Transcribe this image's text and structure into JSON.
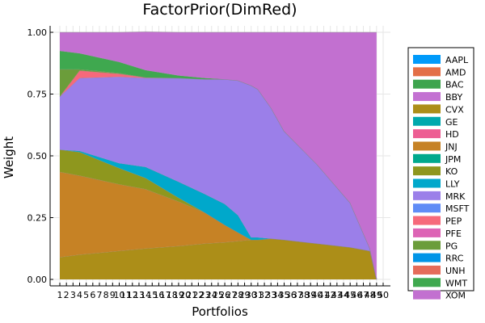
{
  "chart_data": {
    "type": "area",
    "stacked": true,
    "title": "FactorPrior(DimRed)",
    "xlabel": "Portfolios",
    "ylabel": "Weight",
    "xlim": [
      1,
      50
    ],
    "ylim": [
      0,
      1
    ],
    "yticks": [
      "0.00",
      "0.25",
      "0.50",
      "0.75",
      "1.00"
    ],
    "x": [
      1,
      4,
      10,
      14,
      19,
      23,
      26,
      28,
      30,
      31,
      33,
      35,
      40,
      45,
      48,
      49
    ],
    "grid": true,
    "legend_position": "right",
    "series": [
      {
        "name": "AAPL",
        "color": "#009AFA",
        "values": [
          0,
          0,
          0,
          0,
          0,
          0,
          0,
          0,
          0,
          0,
          0,
          0,
          0,
          0,
          0,
          0
        ]
      },
      {
        "name": "AMD",
        "color": "#E36F47",
        "values": [
          0,
          0,
          0,
          0,
          0,
          0,
          0,
          0,
          0,
          0,
          0,
          0,
          0,
          0,
          0,
          0
        ]
      },
      {
        "name": "BAC",
        "color": "#3EA44E",
        "values": [
          0,
          0,
          0,
          0,
          0,
          0,
          0,
          0,
          0,
          0,
          0,
          0,
          0,
          0,
          0,
          0
        ]
      },
      {
        "name": "BBY",
        "color": "#C371D2",
        "values": [
          0,
          0,
          0,
          0,
          0,
          0,
          0,
          0,
          0,
          0,
          0,
          0,
          0,
          0,
          0,
          0
        ]
      },
      {
        "name": "CVX",
        "color": "#AC8E18",
        "values": [
          0.09,
          0.1,
          0.115,
          0.125,
          0.135,
          0.145,
          0.15,
          0.155,
          0.16,
          0.16,
          0.165,
          0.16,
          0.145,
          0.13,
          0.115,
          0
        ]
      },
      {
        "name": "GE",
        "color": "#00A9AD",
        "values": [
          0,
          0,
          0,
          0,
          0,
          0,
          0,
          0,
          0,
          0,
          0,
          0,
          0,
          0,
          0,
          0
        ]
      },
      {
        "name": "HD",
        "color": "#ED5E93",
        "values": [
          0,
          0,
          0,
          0,
          0,
          0,
          0,
          0,
          0,
          0,
          0,
          0,
          0,
          0,
          0,
          0
        ]
      },
      {
        "name": "JNJ",
        "color": "#C68225",
        "values": [
          0.345,
          0.32,
          0.27,
          0.24,
          0.18,
          0.125,
          0.07,
          0.035,
          0,
          0,
          0,
          0,
          0,
          0,
          0,
          0
        ]
      },
      {
        "name": "JPM",
        "color": "#00A98D",
        "values": [
          0,
          0,
          0,
          0,
          0,
          0,
          0,
          0,
          0,
          0,
          0,
          0,
          0,
          0,
          0,
          0
        ]
      },
      {
        "name": "KO",
        "color": "#8E971E",
        "values": [
          0.09,
          0.095,
          0.065,
          0.045,
          0.015,
          0,
          0,
          0,
          0,
          0,
          0,
          0,
          0,
          0,
          0,
          0
        ]
      },
      {
        "name": "LLY",
        "color": "#00A8CB",
        "values": [
          0,
          0.005,
          0.02,
          0.045,
          0.065,
          0.075,
          0.085,
          0.07,
          0.01,
          0.01,
          0,
          0,
          0,
          0,
          0,
          0
        ]
      },
      {
        "name": "MRK",
        "color": "#9B7FE9",
        "values": [
          0.215,
          0.295,
          0.35,
          0.36,
          0.42,
          0.465,
          0.505,
          0.545,
          0.615,
          0.6,
          0.53,
          0.44,
          0.32,
          0.18,
          0.01,
          0
        ]
      },
      {
        "name": "MSFT",
        "color": "#608CF6",
        "values": [
          0,
          0,
          0,
          0,
          0,
          0,
          0,
          0,
          0,
          0,
          0,
          0,
          0,
          0,
          0,
          0
        ]
      },
      {
        "name": "PEP",
        "color": "#F6697B",
        "values": [
          0,
          0.03,
          0.012,
          0.002,
          0,
          0,
          0,
          0,
          0,
          0,
          0,
          0,
          0,
          0,
          0,
          0
        ]
      },
      {
        "name": "PFE",
        "color": "#DD64B5",
        "values": [
          0,
          0,
          0,
          0,
          0,
          0,
          0,
          0,
          0,
          0,
          0,
          0,
          0,
          0,
          0,
          0
        ]
      },
      {
        "name": "PG",
        "color": "#6B9D3A",
        "values": [
          0.11,
          0.005,
          0.003,
          0,
          0,
          0,
          0,
          0,
          0,
          0,
          0,
          0,
          0,
          0,
          0,
          0
        ]
      },
      {
        "name": "RRC",
        "color": "#0095E7",
        "values": [
          0,
          0,
          0,
          0,
          0,
          0,
          0,
          0,
          0,
          0,
          0,
          0,
          0,
          0,
          0,
          0
        ]
      },
      {
        "name": "UNH",
        "color": "#E56C5A",
        "values": [
          0,
          0,
          0,
          0,
          0,
          0,
          0,
          0,
          0,
          0,
          0,
          0,
          0,
          0,
          0,
          0
        ]
      },
      {
        "name": "WMT",
        "color": "#3FA84F",
        "values": [
          0.075,
          0.065,
          0.045,
          0.03,
          0.01,
          0.005,
          0,
          0,
          0,
          0,
          0,
          0,
          0,
          0,
          0,
          0
        ]
      },
      {
        "name": "XOM",
        "color": "#C270D0",
        "values": [
          0.075,
          0.085,
          0.12,
          0.155,
          0.175,
          0.185,
          0.19,
          0.195,
          0.215,
          0.23,
          0.305,
          0.4,
          0.535,
          0.69,
          0.875,
          1.0
        ]
      }
    ]
  }
}
